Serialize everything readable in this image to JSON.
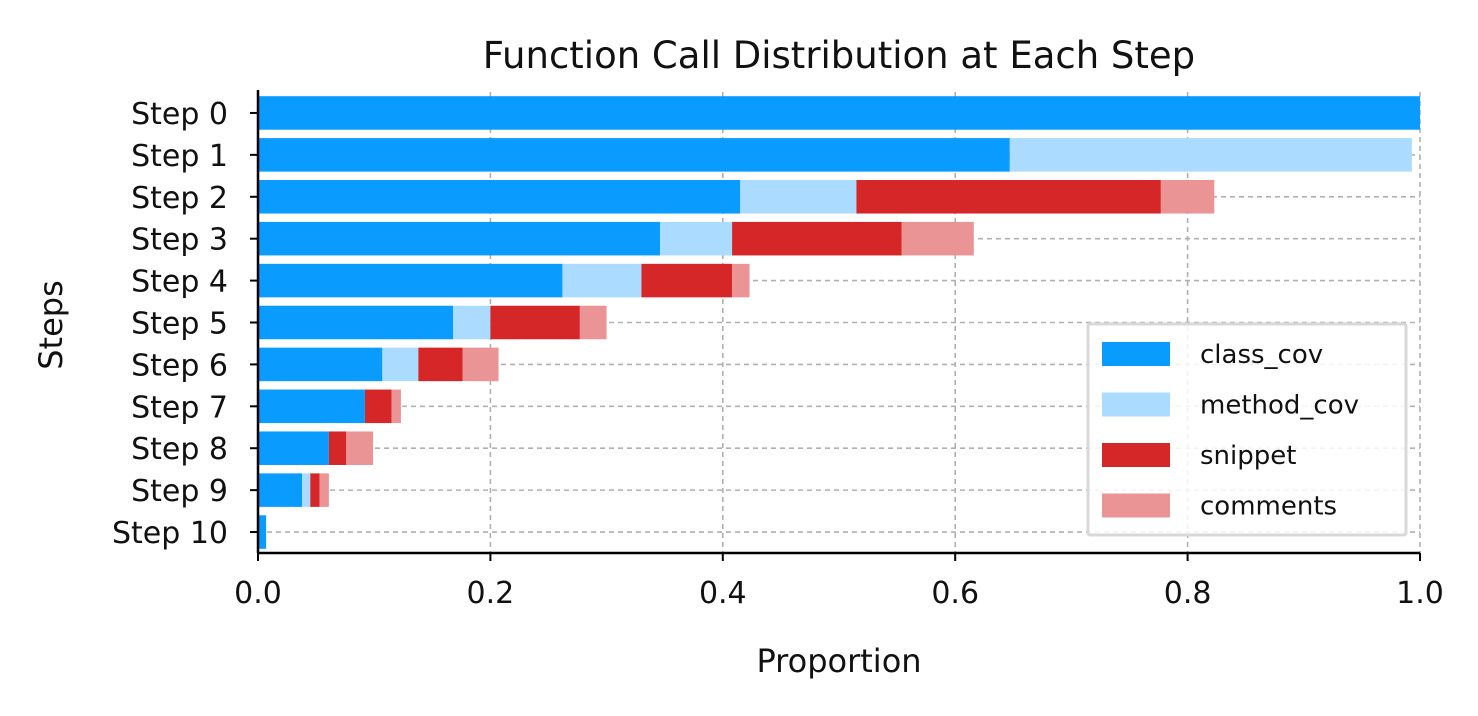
{
  "chart_data": {
    "type": "bar",
    "orientation": "horizontal",
    "stacked": true,
    "title": "Function Call Distribution at Each Step",
    "xlabel": "Proportion",
    "ylabel": "Steps",
    "xlim": [
      0,
      1
    ],
    "x_ticks": [
      "0.0",
      "0.2",
      "0.4",
      "0.6",
      "0.8",
      "1.0"
    ],
    "x_tick_values": [
      0,
      0.2,
      0.4,
      0.6,
      0.8,
      1.0
    ],
    "grid": true,
    "legend_position": "lower-right",
    "categories": [
      "Step 0",
      "Step 1",
      "Step 2",
      "Step 3",
      "Step 4",
      "Step 5",
      "Step 6",
      "Step 7",
      "Step 8",
      "Step 9",
      "Step 10"
    ],
    "series": [
      {
        "name": "class_cov",
        "color": "#0a9bff",
        "values": [
          1.0,
          0.647,
          0.415,
          0.346,
          0.262,
          0.168,
          0.107,
          0.092,
          0.061,
          0.038,
          0.007
        ]
      },
      {
        "name": "method_cov",
        "color": "#abdcff",
        "values": [
          0.0,
          0.346,
          0.1,
          0.062,
          0.068,
          0.032,
          0.031,
          0.0,
          0.0,
          0.007,
          0.0
        ]
      },
      {
        "name": "snippet",
        "color": "#d62728",
        "values": [
          0.0,
          0.0,
          0.262,
          0.146,
          0.078,
          0.077,
          0.038,
          0.023,
          0.015,
          0.008,
          0.0
        ]
      },
      {
        "name": "comments",
        "color": "#eb9496",
        "values": [
          0.0,
          0.0,
          0.046,
          0.062,
          0.015,
          0.023,
          0.031,
          0.008,
          0.023,
          0.008,
          0.0
        ]
      }
    ]
  }
}
